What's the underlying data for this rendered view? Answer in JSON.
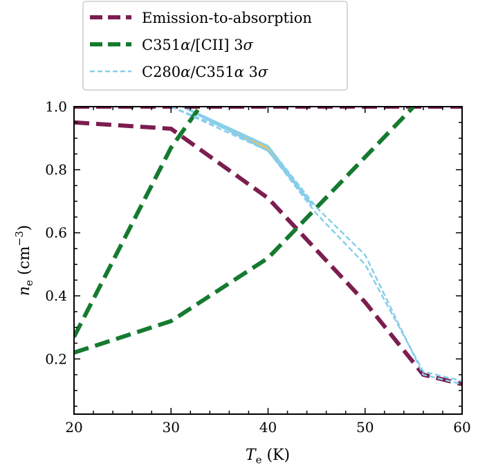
{
  "chart_data": {
    "type": "line",
    "xlabel_parts": {
      "var": "T",
      "sub": "e",
      "rest": " (K)"
    },
    "ylabel_parts": {
      "var": "n",
      "sub": "e",
      "unit_pre": " (cm",
      "sup": "−3",
      "unit_post": ")"
    },
    "xlim": [
      20,
      60
    ],
    "ylim": [
      0.025,
      1.0
    ],
    "xticks": [
      20,
      30,
      40,
      50,
      60
    ],
    "yticks": [
      0.2,
      0.4,
      0.6,
      0.8,
      1.0
    ],
    "ytick_labels": [
      "0.2",
      "0.4",
      "0.6",
      "0.8",
      "1.0"
    ],
    "legend_position": "top-center-outside",
    "series": [
      {
        "name": "Emission-to-absorption",
        "color": "#7b1e4f",
        "style": "dashed-thick",
        "segments": [
          {
            "x": [
              20,
              30,
              40,
              50,
              56,
              60
            ],
            "y": [
              0.95,
              0.93,
              0.71,
              0.38,
              0.15,
              0.12
            ]
          },
          {
            "x": [
              20,
              60
            ],
            "y": [
              1.0,
              1.0
            ]
          }
        ]
      },
      {
        "name": "C351α/[CII] 3σ",
        "name_parts": {
          "pre": "C351",
          "alpha": "α",
          "mid": "/[CII] 3",
          "sigma": "σ"
        },
        "color": "#157a30",
        "style": "dashed-thick",
        "segments": [
          {
            "x": [
              20,
              30,
              33
            ],
            "y": [
              0.27,
              0.87,
              1.0
            ]
          },
          {
            "x": [
              20,
              30,
              40,
              50,
              55
            ],
            "y": [
              0.22,
              0.32,
              0.52,
              0.84,
              1.0
            ]
          }
        ]
      },
      {
        "name": "C280α/C351α 3σ",
        "name_parts": {
          "pre": "C280",
          "alpha": "α",
          "mid": "/C351",
          "alpha2": "α",
          "mid2": " 3",
          "sigma": "σ"
        },
        "color": "#87ceeb",
        "style": "dashed-thin",
        "segments": [
          {
            "x": [
              30,
              40,
              45,
              50,
              56,
              60
            ],
            "y": [
              1.0,
              0.86,
              0.66,
              0.5,
              0.16,
              0.13
            ]
          },
          {
            "x": [
              30,
              40,
              45,
              50,
              56,
              60
            ],
            "y": [
              1.0,
              0.875,
              0.68,
              0.53,
              0.15,
              0.12
            ]
          }
        ]
      }
    ],
    "allowed_region": {
      "fill": "#e8c35a",
      "edge": "#87ceeb",
      "upper": {
        "x": [
          31.2,
          40,
          44.5
        ],
        "y": [
          1.0,
          0.875,
          0.69
        ]
      },
      "lower": {
        "x": [
          44.5,
          40,
          31.2
        ],
        "y": [
          0.69,
          0.86,
          1.0
        ]
      }
    }
  }
}
